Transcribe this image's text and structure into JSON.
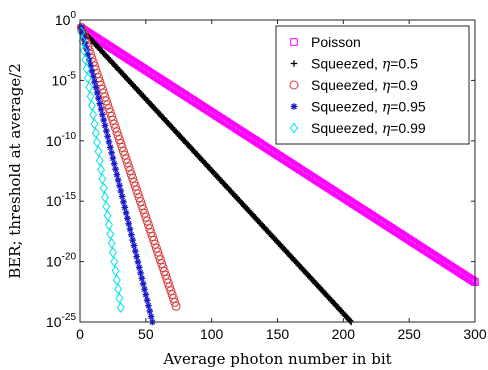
{
  "chart_data": {
    "type": "scatter",
    "xlabel": "Average photon number in bit",
    "ylabel": "BER; threshold at average/2",
    "xlim": [
      0,
      300
    ],
    "ylim_exp": [
      -25,
      0
    ],
    "yscale": "log",
    "grid": false,
    "legend_position": "top-right",
    "x_ticks": [
      "0",
      "50",
      "100",
      "150",
      "200",
      "250",
      "300"
    ],
    "y_ticks": [
      {
        "base": "10",
        "exp": "0"
      },
      {
        "base": "10",
        "exp": "-5"
      },
      {
        "base": "10",
        "exp": "-10"
      },
      {
        "base": "10",
        "exp": "-15"
      },
      {
        "base": "10",
        "exp": "-20"
      },
      {
        "base": "10",
        "exp": "-25"
      }
    ],
    "series": [
      {
        "name": "Poisson",
        "label_prefix": "Poisson",
        "eta": "",
        "marker": "square",
        "color": "#ff00ff",
        "x_start": 1,
        "x_end": 300,
        "x_step": 1,
        "log10_start": -0.7,
        "log10_end": -21.7
      },
      {
        "name": "Squeezed, η=0.5",
        "label_prefix": "Squeezed, ",
        "eta": "=0.5",
        "marker": "plus",
        "color": "#000000",
        "x_start": 1,
        "x_end": 206,
        "x_step": 1,
        "log10_start": -0.75,
        "log10_end": -25.0
      },
      {
        "name": "Squeezed, η=0.9",
        "label_prefix": "Squeezed, ",
        "eta": "=0.9",
        "marker": "circle",
        "color": "#d93b3b",
        "x_start": 1,
        "x_end": 73,
        "x_step": 1,
        "log10_start": -0.6,
        "log10_end": -23.7
      },
      {
        "name": "Squeezed, η=0.95",
        "label_prefix": "Squeezed, ",
        "eta": "=0.95",
        "marker": "asterisk",
        "color": "#1a1acc",
        "x_start": 1,
        "x_end": 55,
        "x_step": 1,
        "log10_start": -0.6,
        "log10_end": -25.0
      },
      {
        "name": "Squeezed, η=0.99",
        "label_prefix": "Squeezed, ",
        "eta": "=0.99",
        "marker": "diamond",
        "color": "#00e5e5",
        "x_start": 1,
        "x_end": 31,
        "x_step": 1,
        "log10_start": -1.0,
        "log10_end": -23.8
      }
    ]
  }
}
